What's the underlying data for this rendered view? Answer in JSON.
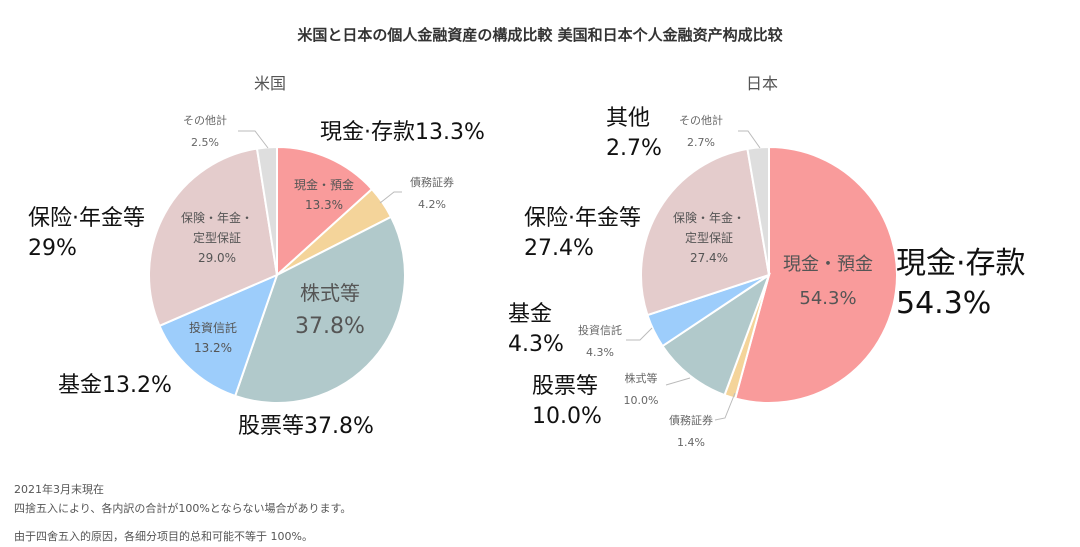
{
  "header": {
    "title": "米国と日本の個人金融資産の構成比較 美国和日本个人金融资产构成比较"
  },
  "chart_data": [
    {
      "type": "pie",
      "title": "米国",
      "categories": [
        "現金・預金",
        "債務証券",
        "株式等",
        "投資信託",
        "保険・年金・定型保証",
        "その他計"
      ],
      "values": [
        13.3,
        4.2,
        37.8,
        13.2,
        29.0,
        2.5
      ],
      "colors": [
        "#f99b9b",
        "#f4d49a",
        "#b1c9cb",
        "#9dcdfb",
        "#e4cccc",
        "#dedede"
      ],
      "inner_labels": {
        "cash": [
          "現金・預金",
          "13.3%"
        ],
        "stocks": [
          "株式等",
          "37.8%"
        ],
        "funds": [
          "投資信託",
          "13.2%"
        ],
        "insurance": [
          "保険・年金・",
          "定型保証",
          "29.0%"
        ]
      },
      "outer_labels": {
        "debt": [
          "債務証券",
          "4.2%"
        ],
        "other": [
          "その他計",
          "2.5%"
        ]
      },
      "chinese_labels": {
        "cash": "現金·存款13.3%",
        "insurance": [
          "保险·年金等",
          "29%"
        ],
        "funds": "基金13.2%",
        "stocks": "股票等37.8%"
      }
    },
    {
      "type": "pie",
      "title": "日本",
      "categories": [
        "現金・預金",
        "債務証券",
        "株式等",
        "投資信託",
        "保険・年金・定型保証",
        "その他計"
      ],
      "values": [
        54.3,
        1.4,
        10.0,
        4.3,
        27.4,
        2.7
      ],
      "colors": [
        "#f99b9b",
        "#f4d49a",
        "#b1c9cb",
        "#9dcdfb",
        "#e4cccc",
        "#dedede"
      ],
      "inner_labels": {
        "cash": [
          "現金・預金",
          "54.3%"
        ],
        "insurance": [
          "保険・年金・",
          "定型保証",
          "27.4%"
        ]
      },
      "outer_labels": {
        "other": [
          "その他計",
          "2.7%"
        ],
        "funds": [
          "投資信託",
          "4.3%"
        ],
        "stocks": [
          "株式等",
          "10.0%"
        ],
        "debt": [
          "債務証券",
          "1.4%"
        ]
      },
      "chinese_labels": {
        "other": [
          "其他",
          "2.7%"
        ],
        "insurance": [
          "保险·年金等",
          "27.4%"
        ],
        "funds": [
          "基金",
          "4.3%"
        ],
        "stocks": [
          "股票等",
          "10.0%"
        ],
        "cash": [
          "現金·存款",
          "54.3%"
        ]
      }
    }
  ],
  "footnotes": {
    "date": "2021年3月末現在",
    "jp": "四捨五入により、各内訳の合計が100%とならない場合があります。",
    "cn": "由于四舍五入的原因，各细分项目的总和可能不等于 100%。"
  }
}
